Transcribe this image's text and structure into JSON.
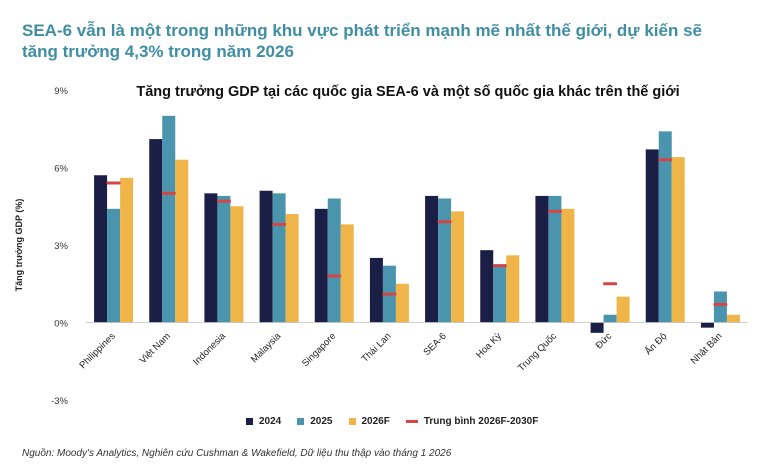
{
  "headline": "SEA-6 vẫn là một trong những khu vực phát triển mạnh mẽ nhất thế giới, dự kiến sẽ tăng trưởng 4,3% trong năm 2026",
  "source": "Nguồn: Moody's Analytics, Nghiên cứu Cushman & Wakefield, Dữ liệu thu thập vào tháng 1 2026",
  "chart_data": {
    "type": "bar",
    "title": "Tăng trưởng GDP tại các quốc gia SEA-6 và một số quốc gia khác trên thế giới",
    "xlabel": "",
    "ylabel": "Tăng trưởng GDP  (%)",
    "ylim": [
      -3,
      9
    ],
    "yticks": [
      -3,
      0,
      3,
      6,
      9
    ],
    "ytick_labels": [
      "-3%",
      "0%",
      "3%",
      "6%",
      "9%"
    ],
    "grid": false,
    "legend_position": "bottom",
    "categories": [
      "Philippines",
      "Việt Nam",
      "Indonesia",
      "Malaysia",
      "Singapore",
      "Thái Lan",
      "SEA-6",
      "Hoa Kỳ",
      "Trung Quốc",
      "Đức",
      "Ấn Độ",
      "Nhật Bản"
    ],
    "series": [
      {
        "name": "2024",
        "color": "#1b1f45",
        "values": [
          5.7,
          7.1,
          5.0,
          5.1,
          4.4,
          2.5,
          4.9,
          2.8,
          4.9,
          -0.4,
          6.7,
          -0.2
        ]
      },
      {
        "name": "2025",
        "color": "#4a95ad",
        "values": [
          4.4,
          8.0,
          4.9,
          5.0,
          4.8,
          2.2,
          4.8,
          2.2,
          4.9,
          0.3,
          7.4,
          1.2
        ]
      },
      {
        "name": "2026F",
        "color": "#efb548",
        "values": [
          5.6,
          6.3,
          4.5,
          4.2,
          3.8,
          1.5,
          4.3,
          2.6,
          4.4,
          1.0,
          6.4,
          0.3
        ]
      }
    ],
    "marker_series": {
      "name": "Trung bình 2026F-2030F",
      "color": "#d64545",
      "values": [
        5.4,
        5.0,
        4.7,
        3.8,
        1.8,
        1.1,
        3.9,
        2.2,
        4.3,
        1.5,
        6.3,
        0.7
      ]
    }
  }
}
